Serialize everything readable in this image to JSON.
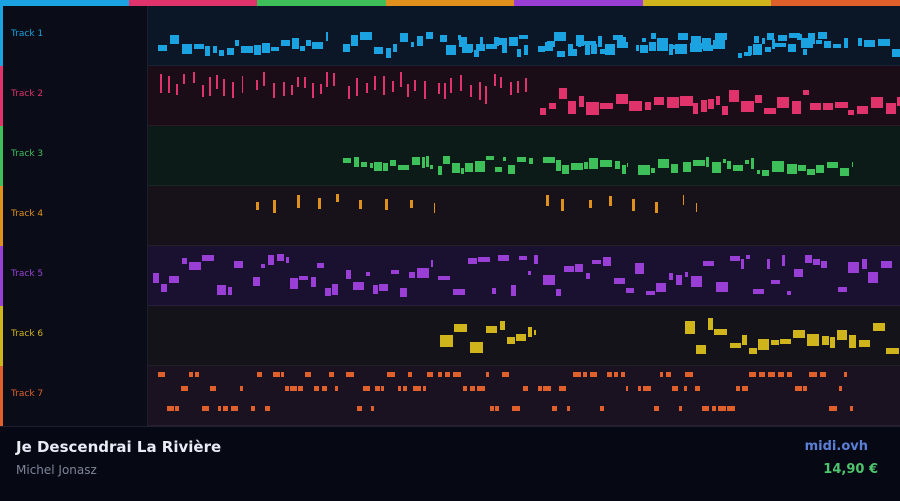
{
  "colors": {
    "background": "#0a0c14",
    "brand": "#5b7fd6",
    "price": "#4ec46c"
  },
  "tracks": [
    {
      "label": "Track 1",
      "color": "#1aa3e0",
      "lane_bg": "#0b1627"
    },
    {
      "label": "Track 2",
      "color": "#e0336b",
      "lane_bg": "#1b0d18"
    },
    {
      "label": "Track 3",
      "color": "#3dbf5a",
      "lane_bg": "#0c1a18"
    },
    {
      "label": "Track 4",
      "color": "#e0901c",
      "lane_bg": "#17121a"
    },
    {
      "label": "Track 5",
      "color": "#9a3fd6",
      "lane_bg": "#1a1030"
    },
    {
      "label": "Track 6",
      "color": "#d0b41c",
      "lane_bg": "#14131a"
    },
    {
      "label": "Track 7",
      "color": "#e0602c",
      "lane_bg": "#1a1220"
    }
  ],
  "footer": {
    "title": "Je Descendrai La Rivière",
    "artist": "Michel Jonasz",
    "brand": "midi.ovh",
    "price": "14,90 €"
  }
}
